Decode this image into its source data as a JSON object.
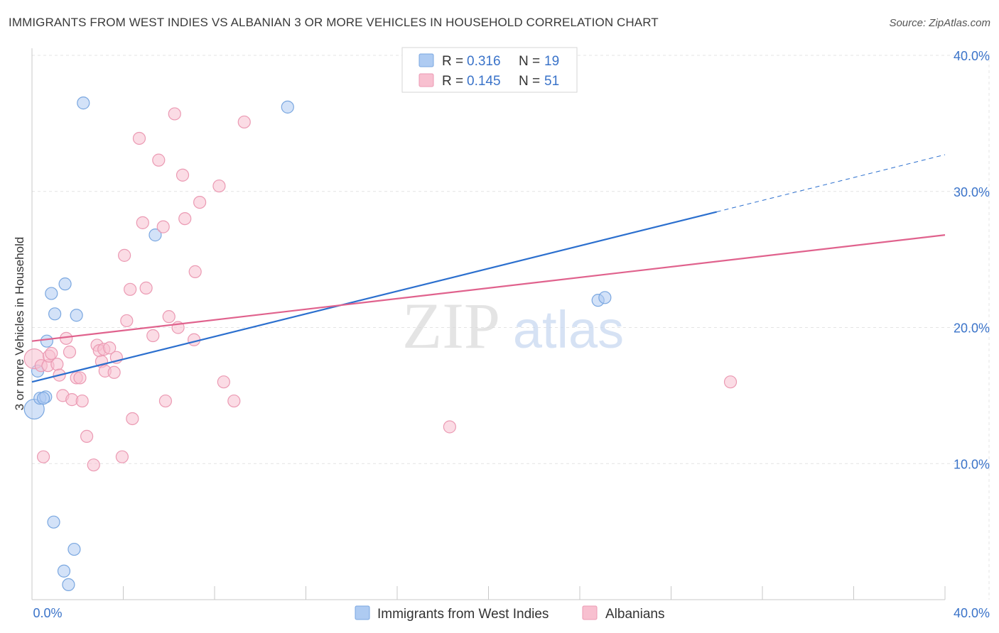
{
  "header": {
    "title": "IMMIGRANTS FROM WEST INDIES VS ALBANIAN 3 OR MORE VEHICLES IN HOUSEHOLD CORRELATION CHART",
    "source": "Source: ZipAtlas.com"
  },
  "watermark": {
    "zip": "ZIP",
    "atlas": "atlas"
  },
  "colors": {
    "blue_fill": "#aecbf2",
    "blue_stroke": "#7aa7e0",
    "blue_line": "#2b6fce",
    "pink_fill": "#f8c0d0",
    "pink_stroke": "#eb9ab3",
    "pink_line": "#e0628d",
    "axis_text": "#3a73c9",
    "grid": "#e4e4e4"
  },
  "chart_data": {
    "type": "scatter",
    "title": "IMMIGRANTS FROM WEST INDIES VS ALBANIAN 3 OR MORE VEHICLES IN HOUSEHOLD CORRELATION CHART",
    "xlabel": "",
    "ylabel": "3 or more Vehicles in Household",
    "xlim": [
      0,
      40
    ],
    "ylim": [
      0,
      40
    ],
    "x_tick_labels": [
      "0.0%",
      "40.0%"
    ],
    "y_ticks": [
      10,
      20,
      30,
      40
    ],
    "y_tick_labels": [
      "10.0%",
      "20.0%",
      "30.0%",
      "40.0%"
    ],
    "grid": true,
    "legend_position": "top-center",
    "stats": [
      {
        "r_label": "R =",
        "r": "0.316",
        "n_label": "N =",
        "n": "19"
      },
      {
        "r_label": "R =",
        "r": "0.145",
        "n_label": "N =",
        "n": "51"
      }
    ],
    "series": [
      {
        "name": "Immigrants from West Indies",
        "color": "blue",
        "points": [
          [
            0.1,
            14.0
          ],
          [
            0.25,
            16.8
          ],
          [
            0.35,
            14.8
          ],
          [
            0.6,
            14.9
          ],
          [
            0.65,
            19.0
          ],
          [
            0.85,
            22.5
          ],
          [
            1.0,
            21.0
          ],
          [
            1.45,
            23.2
          ],
          [
            1.95,
            20.9
          ],
          [
            2.25,
            36.5
          ],
          [
            5.4,
            26.8
          ],
          [
            11.2,
            36.2
          ],
          [
            24.8,
            22.0
          ],
          [
            25.1,
            22.2
          ],
          [
            0.95,
            5.7
          ],
          [
            1.85,
            3.7
          ],
          [
            1.4,
            2.1
          ],
          [
            1.6,
            1.1
          ],
          [
            0.5,
            14.8
          ]
        ],
        "trend": {
          "x_start": 0,
          "y_start": 16.0,
          "x_solid_end": 30,
          "y_solid_end": 28.5,
          "x_dash_end": 40,
          "y_dash_end": 32.7
        }
      },
      {
        "name": "Albanians",
        "color": "pink",
        "points": [
          [
            0.1,
            17.7
          ],
          [
            0.4,
            17.2
          ],
          [
            0.5,
            10.5
          ],
          [
            0.7,
            17.2
          ],
          [
            0.75,
            17.9
          ],
          [
            0.85,
            18.1
          ],
          [
            1.1,
            17.3
          ],
          [
            1.2,
            16.5
          ],
          [
            1.35,
            15.0
          ],
          [
            1.5,
            19.2
          ],
          [
            1.65,
            18.2
          ],
          [
            1.75,
            14.7
          ],
          [
            1.95,
            16.3
          ],
          [
            2.1,
            16.3
          ],
          [
            2.2,
            14.6
          ],
          [
            2.4,
            12.0
          ],
          [
            2.7,
            9.9
          ],
          [
            2.85,
            18.7
          ],
          [
            2.95,
            18.3
          ],
          [
            3.05,
            17.5
          ],
          [
            3.15,
            18.4
          ],
          [
            3.2,
            16.8
          ],
          [
            3.4,
            18.5
          ],
          [
            3.6,
            16.7
          ],
          [
            3.7,
            17.8
          ],
          [
            3.95,
            10.5
          ],
          [
            4.05,
            25.3
          ],
          [
            4.15,
            20.5
          ],
          [
            4.3,
            22.8
          ],
          [
            4.4,
            13.3
          ],
          [
            4.7,
            33.9
          ],
          [
            4.85,
            27.7
          ],
          [
            5.0,
            22.9
          ],
          [
            5.3,
            19.4
          ],
          [
            5.55,
            32.3
          ],
          [
            5.75,
            27.4
          ],
          [
            5.85,
            14.6
          ],
          [
            6.0,
            20.8
          ],
          [
            6.25,
            35.7
          ],
          [
            6.4,
            20.0
          ],
          [
            6.6,
            31.2
          ],
          [
            6.7,
            28.0
          ],
          [
            7.1,
            19.1
          ],
          [
            7.15,
            24.1
          ],
          [
            7.35,
            29.2
          ],
          [
            8.2,
            30.4
          ],
          [
            8.4,
            16.0
          ],
          [
            8.85,
            14.6
          ],
          [
            9.3,
            35.1
          ],
          [
            18.3,
            12.7
          ],
          [
            30.6,
            16.0
          ]
        ],
        "trend": {
          "x_start": 0,
          "y_start": 19.0,
          "x_end": 40,
          "y_end": 26.8
        }
      }
    ]
  }
}
